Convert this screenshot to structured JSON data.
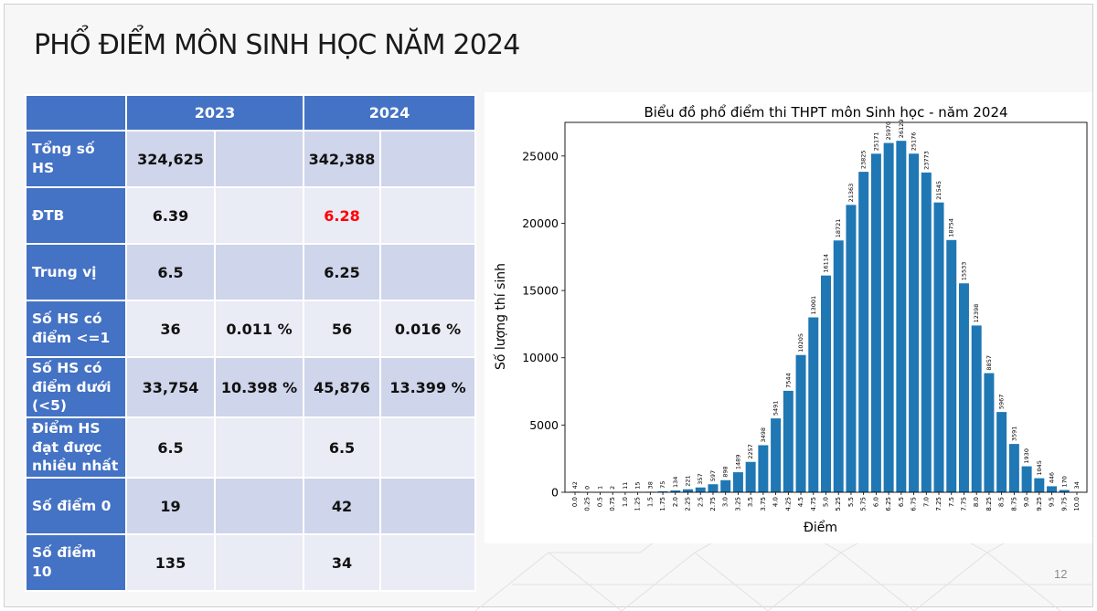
{
  "slide": {
    "title": "PHỔ ĐIỂM MÔN SINH HỌC NĂM 2024",
    "page_number": "12"
  },
  "table": {
    "headers": [
      "",
      "2023",
      "2024"
    ],
    "rows": [
      {
        "label": "Tổng số HS",
        "v2023": "324,625",
        "p2023": "",
        "v2024": "342,388",
        "p2024": ""
      },
      {
        "label": "ĐTB",
        "v2023": "6.39",
        "p2023": "",
        "v2024": "6.28",
        "p2024": ""
      },
      {
        "label": "Trung vị",
        "v2023": "6.5",
        "p2023": "",
        "v2024": "6.25",
        "p2024": ""
      },
      {
        "label": "Số HS có điểm <=1",
        "v2023": "36",
        "p2023": "0.011 %",
        "v2024": "56",
        "p2024": "0.016 %"
      },
      {
        "label": "Số HS có điểm dưới (<5)",
        "v2023": "33,754",
        "p2023": "10.398 %",
        "v2024": "45,876",
        "p2024": "13.399 %"
      },
      {
        "label": "Điểm HS đạt được nhiều nhất",
        "v2023": "6.5",
        "p2023": "",
        "v2024": "6.5",
        "p2024": ""
      },
      {
        "label": "Số điểm 0",
        "v2023": "19",
        "p2023": "",
        "v2024": "42",
        "p2024": ""
      },
      {
        "label": "Số điểm 10",
        "v2023": "135",
        "p2023": "",
        "v2024": "34",
        "p2024": ""
      }
    ],
    "highlight_color": "#ff0000"
  },
  "chart_data": {
    "type": "bar",
    "title": "Biểu đồ phổ điểm thi THPT môn Sinh học - năm 2024",
    "xlabel": "Điểm",
    "ylabel": "Số lượng thí sinh",
    "categories": [
      "0.0",
      "0.25",
      "0.5",
      "0.75",
      "1.0",
      "1.25",
      "1.5",
      "1.75",
      "2.0",
      "2.25",
      "2.5",
      "2.75",
      "3.0",
      "3.25",
      "3.5",
      "3.75",
      "4.0",
      "4.25",
      "4.5",
      "4.75",
      "5.0",
      "5.25",
      "5.5",
      "5.75",
      "6.0",
      "6.25",
      "6.5",
      "6.75",
      "7.0",
      "7.25",
      "7.5",
      "7.75",
      "8.0",
      "8.25",
      "8.5",
      "8.75",
      "9.0",
      "9.25",
      "9.5",
      "9.75",
      "10.0"
    ],
    "values": [
      42,
      0,
      1,
      2,
      11,
      15,
      38,
      75,
      134,
      221,
      357,
      597,
      898,
      1489,
      2257,
      3498,
      5491,
      7544,
      10205,
      13001,
      16114,
      18721,
      21363,
      23825,
      25171,
      25970,
      26129,
      25176,
      23773,
      21545,
      18754,
      15533,
      12398,
      8857,
      5967,
      3591,
      1930,
      1045,
      446,
      170,
      34
    ],
    "yticks": [
      0,
      5000,
      10000,
      15000,
      20000,
      25000
    ],
    "ylim": [
      0,
      27500
    ],
    "bar_color": "#1f77b4",
    "grid": false,
    "legend": "none"
  }
}
